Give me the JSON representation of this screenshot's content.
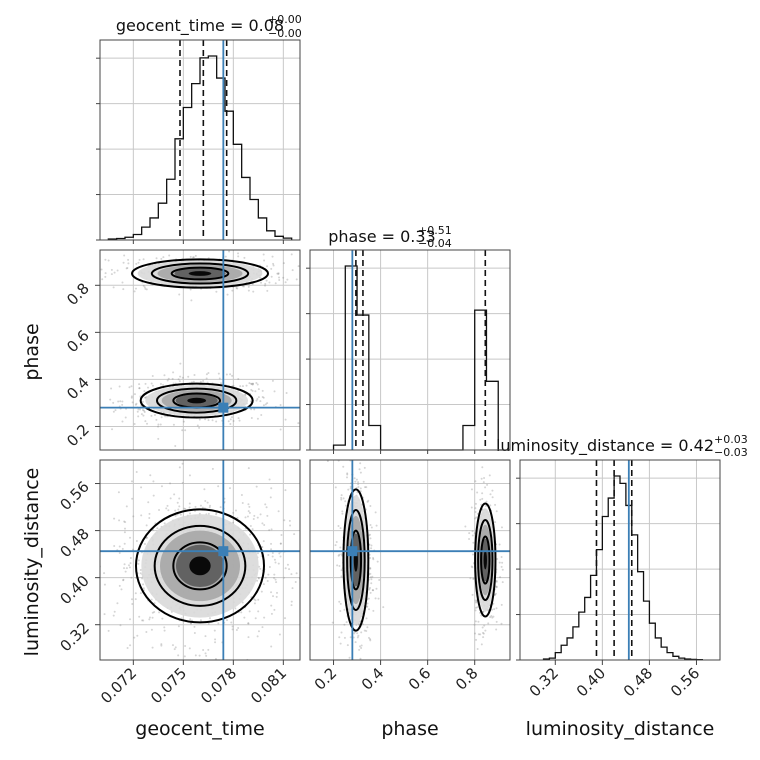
{
  "chart_data": {
    "type": "corner",
    "truth_color": "#3b7fb6",
    "grid": true,
    "parameters": [
      {
        "name": "geocent_time",
        "label": "geocent_time",
        "range": [
          0.07,
          0.082
        ],
        "ticks": [
          "0.072",
          "0.075",
          "0.078",
          "0.081"
        ],
        "truth": 0.0774,
        "title": {
          "prefix": "geocent_time = ",
          "value": "0.08",
          "plus": "+0.00",
          "minus": "−0.00"
        },
        "quantiles": [
          0.0748,
          0.0762,
          0.0776
        ]
      },
      {
        "name": "phase",
        "label": "phase",
        "range": [
          0.1,
          0.95
        ],
        "ticks": [
          "0.2",
          "0.4",
          "0.6",
          "0.8"
        ],
        "truth": 0.28,
        "title": {
          "prefix": "phase = ",
          "value": "0.33",
          "plus": "+0.51",
          "minus": "−0.04"
        },
        "quantiles": [
          0.295,
          0.325,
          0.845
        ]
      },
      {
        "name": "luminosity_distance",
        "label": "luminosity_distance",
        "range": [
          0.26,
          0.6
        ],
        "ticks": [
          "0.32",
          "0.40",
          "0.48",
          "0.56"
        ],
        "truth": 0.445,
        "title": {
          "prefix": "luminosity_distance = ",
          "value": "0.42",
          "plus": "+0.03",
          "minus": "−0.03"
        },
        "quantiles": [
          0.39,
          0.42,
          0.45
        ]
      }
    ],
    "histograms": {
      "geocent_time": {
        "edges": [
          0.0705,
          0.071,
          0.0715,
          0.072,
          0.0725,
          0.073,
          0.0735,
          0.074,
          0.0745,
          0.075,
          0.0755,
          0.076,
          0.0765,
          0.077,
          0.0775,
          0.078,
          0.0785,
          0.079,
          0.0795,
          0.08,
          0.0805,
          0.081,
          0.0815
        ],
        "counts": [
          0.5,
          0.8,
          1.5,
          3,
          7,
          12,
          20,
          33,
          55,
          72,
          85,
          99,
          100,
          88,
          70,
          52,
          34,
          22,
          12,
          5,
          2,
          1
        ]
      },
      "phase": {
        "edges": [
          0.2,
          0.25,
          0.3,
          0.35,
          0.4,
          0.45,
          0.5,
          0.55,
          0.6,
          0.65,
          0.7,
          0.75,
          0.8,
          0.85,
          0.9,
          0.95
        ],
        "counts": [
          2,
          75,
          55,
          10,
          0,
          0,
          0,
          0,
          0,
          0,
          0,
          10,
          57,
          28,
          0
        ],
        "truncate_after": 14
      },
      "luminosity_distance": {
        "edges": [
          0.3,
          0.31,
          0.32,
          0.33,
          0.34,
          0.35,
          0.36,
          0.37,
          0.38,
          0.39,
          0.4,
          0.41,
          0.42,
          0.43,
          0.44,
          0.45,
          0.46,
          0.47,
          0.48,
          0.49,
          0.5,
          0.51,
          0.52,
          0.53,
          0.54,
          0.55,
          0.56,
          0.57
        ],
        "counts": [
          0.5,
          1,
          4,
          8,
          12,
          18,
          26,
          34,
          46,
          60,
          78,
          88,
          100,
          96,
          84,
          68,
          48,
          32,
          20,
          12,
          7,
          4,
          2,
          1,
          0.5,
          0.3,
          0.2
        ]
      }
    },
    "modes_2d": {
      "phase_vs_geocent_time": [
        {
          "x": 0.0758,
          "y": 0.31,
          "sx": 0.0014,
          "sy": 0.03,
          "w": 0.6
        },
        {
          "x": 0.076,
          "y": 0.85,
          "sx": 0.0017,
          "sy": 0.025,
          "w": 0.4
        }
      ],
      "luminosity_distance_vs_geocent_time": [
        {
          "x": 0.076,
          "y": 0.42,
          "sx": 0.0016,
          "sy": 0.04,
          "w": 1.0
        }
      ],
      "luminosity_distance_vs_phase": [
        {
          "x": 0.295,
          "y": 0.43,
          "sx": 0.022,
          "sy": 0.05,
          "w": 0.6
        },
        {
          "x": 0.845,
          "y": 0.43,
          "sx": 0.018,
          "sy": 0.04,
          "w": 0.4
        }
      ]
    }
  }
}
